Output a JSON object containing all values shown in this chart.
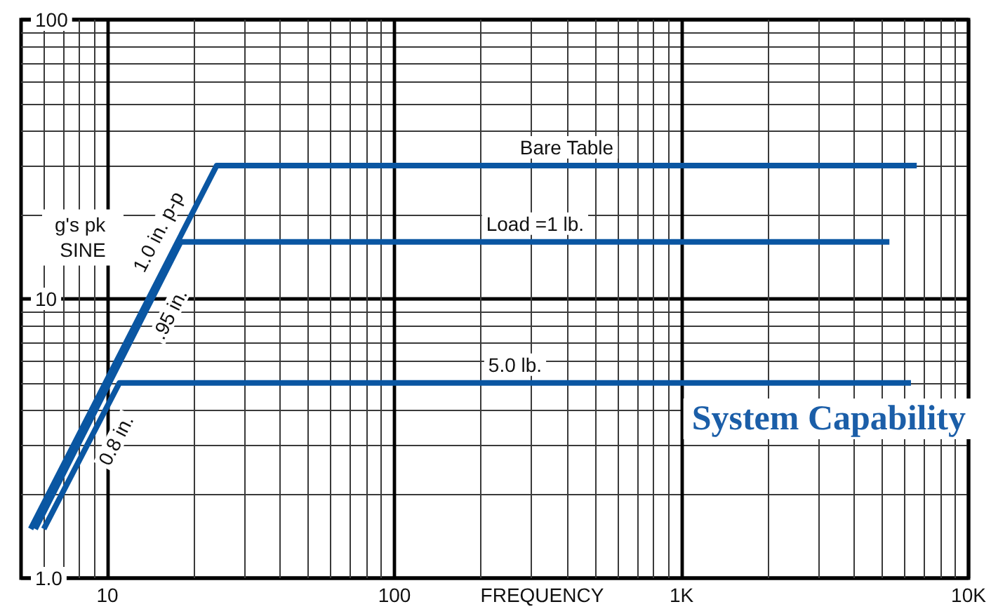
{
  "chart_data": {
    "type": "line",
    "title": "System Capability",
    "xlabel": "FREQUENCY",
    "ylabel": "g's pk SINE",
    "log": "xy",
    "grid": true,
    "xlim": [
      5,
      10000
    ],
    "xticks": [
      {
        "value": 6,
        "label": null
      },
      {
        "value": 7,
        "label": null
      },
      {
        "value": 8,
        "label": null
      },
      {
        "value": 9,
        "label": null
      },
      10,
      {
        "value": 20,
        "label": null
      },
      {
        "value": 30,
        "label": null
      },
      {
        "value": 40,
        "label": null
      },
      {
        "value": 50,
        "label": null
      },
      {
        "value": 60,
        "label": null
      },
      {
        "value": 70,
        "label": null
      },
      {
        "value": 80,
        "label": null
      },
      {
        "value": 90,
        "label": null
      },
      100,
      {
        "value": 200,
        "label": null
      },
      {
        "value": 300,
        "label": null
      },
      {
        "value": 400,
        "label": null
      },
      {
        "value": 500,
        "label": null
      },
      {
        "value": 600,
        "label": null
      },
      {
        "value": 700,
        "label": null
      },
      {
        "value": 800,
        "label": null
      },
      {
        "value": 900,
        "label": null
      },
      {
        "value": 1000,
        "label": "1K"
      },
      {
        "value": 2000,
        "label": null
      },
      {
        "value": 3000,
        "label": null
      },
      {
        "value": 4000,
        "label": null
      },
      {
        "value": 5000,
        "label": null
      },
      {
        "value": 6000,
        "label": null
      },
      {
        "value": 7000,
        "label": null
      },
      {
        "value": 8000,
        "label": null
      },
      {
        "value": 9000,
        "label": null
      },
      {
        "value": 10000,
        "label": "10K"
      }
    ],
    "ylim": [
      1,
      100
    ],
    "yticks": [
      {
        "value": 1,
        "label": "1.0"
      },
      {
        "value": 2,
        "label": null
      },
      {
        "value": 3,
        "label": null
      },
      {
        "value": 4,
        "label": null
      },
      {
        "value": 5,
        "label": null
      },
      {
        "value": 6,
        "label": null
      },
      {
        "value": 7,
        "label": null
      },
      {
        "value": 8,
        "label": null
      },
      {
        "value": 9,
        "label": null
      },
      10,
      {
        "value": 20,
        "label": null
      },
      {
        "value": 30,
        "label": null
      },
      {
        "value": 40,
        "label": null
      },
      {
        "value": 50,
        "label": null
      },
      {
        "value": 60,
        "label": null
      },
      {
        "value": 70,
        "label": null
      },
      {
        "value": 80,
        "label": null
      },
      {
        "value": 90,
        "label": null
      },
      100
    ],
    "series": [
      {
        "name": "Bare Table",
        "color": "#0a56a2",
        "x": [
          5.4,
          24,
          6600
        ],
        "values": [
          1.5,
          30,
          30
        ]
      },
      {
        "name": "Load =1 lb.",
        "color": "#0a56a2",
        "x": [
          5.6,
          18,
          5300
        ],
        "values": [
          1.5,
          16,
          16
        ]
      },
      {
        "name": "5.0 lb.",
        "color": "#0a56a2",
        "x": [
          6,
          11,
          6300
        ],
        "values": [
          1.5,
          5,
          5
        ]
      }
    ],
    "annotations": [
      {
        "text": "1.0 in. p-p",
        "x": 17.6,
        "y": 16
      },
      {
        "text": ".95 in.",
        "x": 14,
        "y": 9.6
      },
      {
        "text": "0.8 in.",
        "x": 9.1,
        "y": 3.4
      }
    ]
  }
}
